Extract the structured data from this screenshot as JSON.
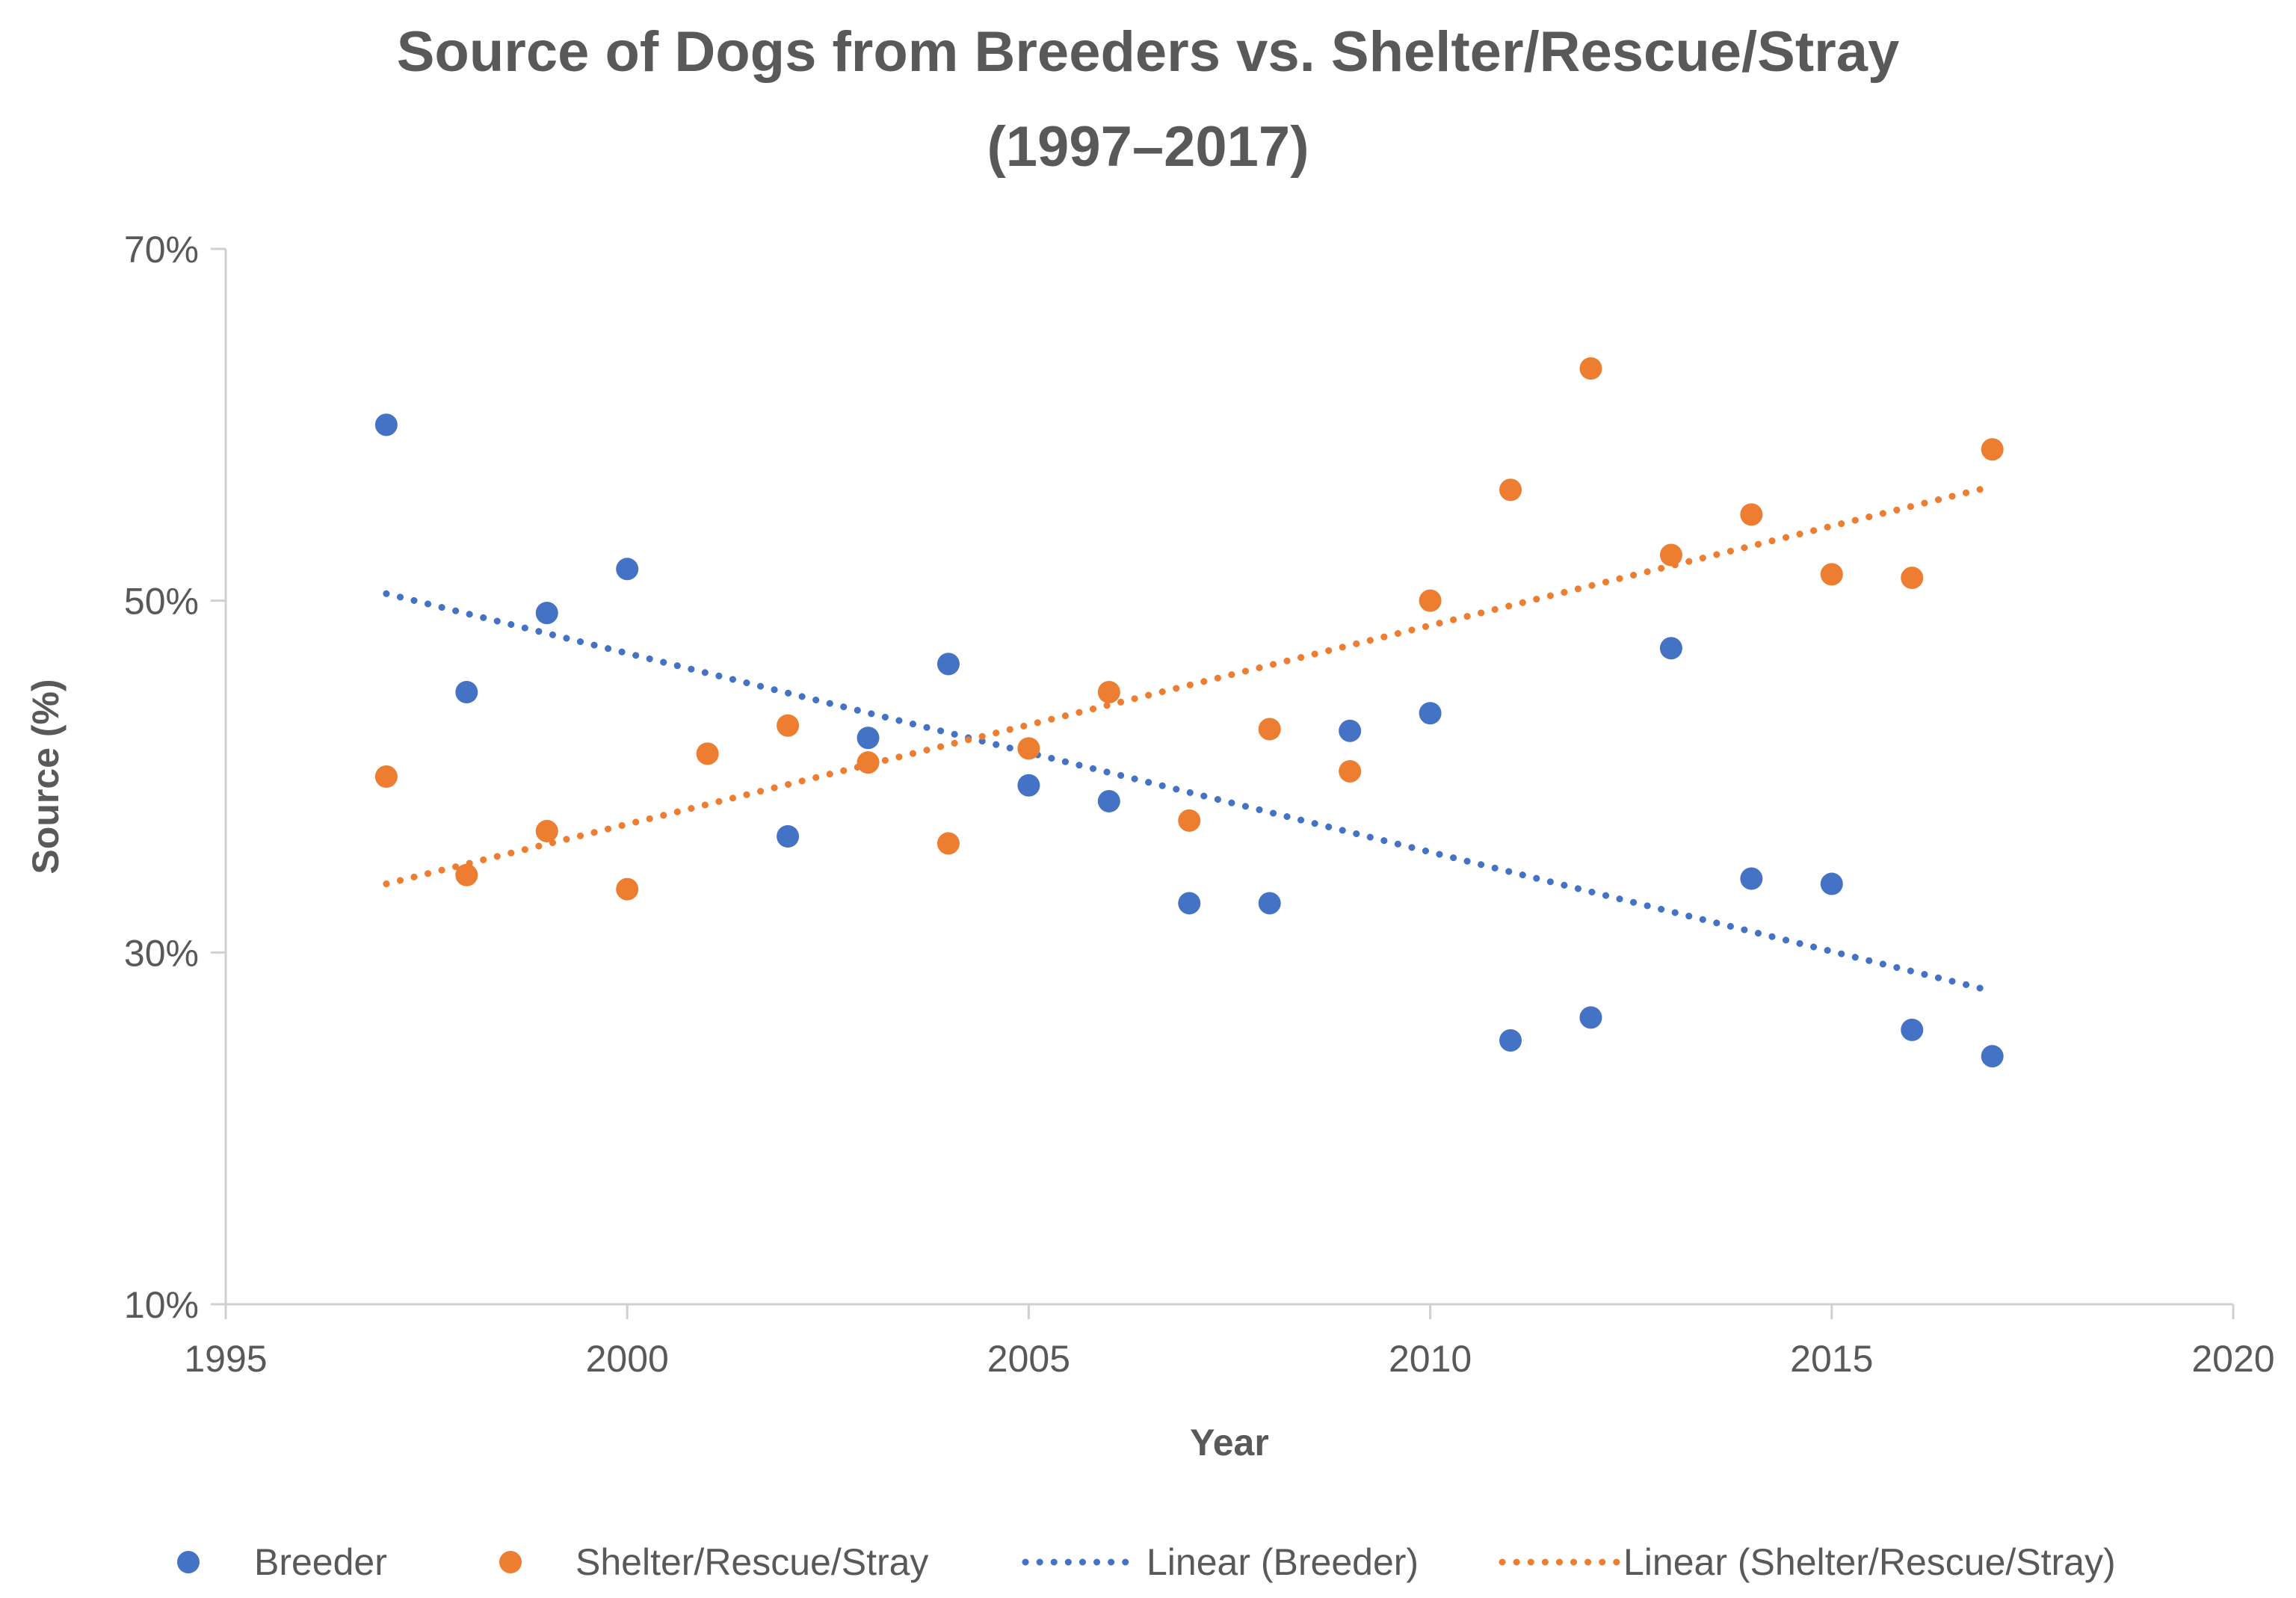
{
  "chart_data": {
    "type": "scatter",
    "title": "Source of Dogs from Breeders vs. Shelter/Rescue/Stray",
    "subtitle": "(1997–2017)",
    "xlabel": "Year",
    "ylabel": "Source (%)",
    "xlim": [
      1995,
      2020
    ],
    "ylim": [
      10,
      70
    ],
    "x_ticks": [
      {
        "value": 1995,
        "label": "1995"
      },
      {
        "value": 2000,
        "label": "2000"
      },
      {
        "value": 2005,
        "label": "2005"
      },
      {
        "value": 2010,
        "label": "2010"
      },
      {
        "value": 2015,
        "label": "2015"
      },
      {
        "value": 2020,
        "label": "2020"
      }
    ],
    "y_ticks": [
      {
        "value": 10,
        "label": "10%"
      },
      {
        "value": 30,
        "label": "30%"
      },
      {
        "value": 50,
        "label": "50%"
      },
      {
        "value": 70,
        "label": "70%"
      }
    ],
    "grid": false,
    "legend_position": "bottom",
    "series": [
      {
        "name": "Breeder",
        "color": "#4472C4",
        "x": [
          1997,
          1998,
          1999,
          2000,
          2002,
          2003,
          2004,
          2005,
          2006,
          2007,
          2008,
          2009,
          2010,
          2011,
          2012,
          2013,
          2014,
          2015,
          2016,
          2017
        ],
        "y": [
          60,
          44.8,
          49.3,
          51.8,
          36.6,
          42.2,
          46.4,
          39.5,
          38.6,
          32.8,
          32.8,
          42.6,
          43.6,
          25,
          26.3,
          47.3,
          34.2,
          33.9,
          25.6,
          24.1
        ]
      },
      {
        "name": "Shelter/Rescue/Stray",
        "color": "#ED7D31",
        "x": [
          1997,
          1998,
          1999,
          2000,
          2001,
          2002,
          2003,
          2004,
          2005,
          2006,
          2007,
          2008,
          2009,
          2010,
          2011,
          2012,
          2013,
          2014,
          2015,
          2016,
          2017
        ],
        "y": [
          40,
          34.4,
          36.9,
          33.6,
          41.3,
          42.9,
          40.8,
          36.2,
          41.6,
          44.8,
          37.5,
          42.7,
          40.3,
          50,
          56.3,
          63.2,
          52.6,
          54.9,
          51.5,
          51.3,
          58.6
        ]
      }
    ],
    "trendlines": [
      {
        "name": "Linear (Breeder)",
        "color": "#4472C4",
        "style": "dotted",
        "x": [
          1997,
          2017
        ],
        "y": [
          50.4,
          27.8
        ]
      },
      {
        "name": "Linear (Shelter/Rescue/Stray)",
        "color": "#ED7D31",
        "style": "dotted",
        "x": [
          1997,
          2017
        ],
        "y": [
          33.9,
          56.5
        ]
      }
    ],
    "legend": [
      "Breeder",
      "Shelter/Rescue/Stray",
      "Linear (Breeder)",
      "Linear (Shelter/Rescue/Stray)"
    ]
  }
}
